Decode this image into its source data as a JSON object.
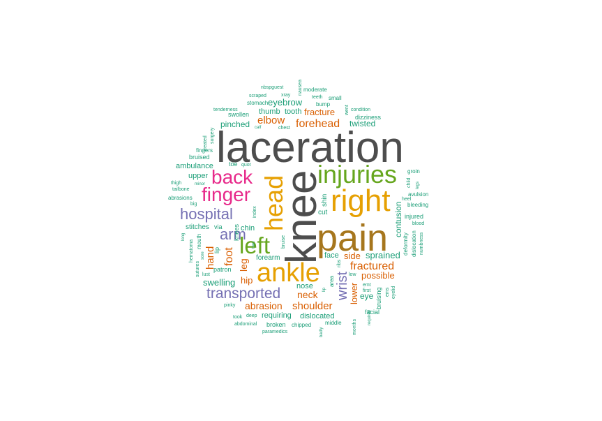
{
  "palette": {
    "gray": "#4d4d4d",
    "brown": "#a6761d",
    "gold": "#e6a002",
    "green": "#66a61e",
    "magenta": "#e7298a",
    "purple": "#7570b3",
    "orange": "#d95f02",
    "teal": "#1b9e77"
  },
  "words": [
    "laceration",
    "knee",
    "pain",
    "right",
    "injuries",
    "ankle",
    "head",
    "left",
    "back",
    "finger",
    "hospital",
    "arm",
    "transported",
    "wrist",
    "fractured",
    "foot",
    "hand",
    "forehead",
    "elbow",
    "fracture",
    "eyebrow",
    "thumb",
    "tooth",
    "twisted",
    "pinched",
    "shoulder",
    "abrasion",
    "neck",
    "hip",
    "swelling",
    "leg",
    "sprained",
    "side",
    "possible",
    "contusion",
    "lower",
    "eye",
    "shin",
    "cut",
    "face",
    "requiring",
    "dislocated",
    "chin",
    "nose",
    "ambulance",
    "upper",
    "stitches",
    "via",
    "toe",
    "quot",
    "fingers",
    "bruised",
    "surgery",
    "treated",
    "swollen",
    "tenderness",
    "stomach",
    "scraped",
    "nbspguest",
    "xray",
    "nausea",
    "moderate",
    "small",
    "teeth",
    "bump",
    "went",
    "condition",
    "dizziness",
    "chest",
    "calf",
    "groin",
    "child",
    "legs",
    "avulsion",
    "heel",
    "bleeding",
    "injured",
    "blood",
    "deformity",
    "dislocation",
    "numbness",
    "first",
    "emt",
    "ems",
    "eyelid",
    "bruising",
    "facial",
    "required",
    "months",
    "middle",
    "chipped",
    "broken",
    "abdominal",
    "paramedics",
    "deep",
    "took",
    "pinky",
    "badly",
    "area",
    "ribs",
    "low",
    "lip",
    "forearm",
    "patron",
    "bruise",
    "knees",
    "index",
    "torn",
    "mouth",
    "lip2",
    "thigh",
    "minor",
    "tailbone",
    "abrasions",
    "big",
    "long",
    "hematoma",
    "sore",
    "sutures",
    "lust"
  ]
}
